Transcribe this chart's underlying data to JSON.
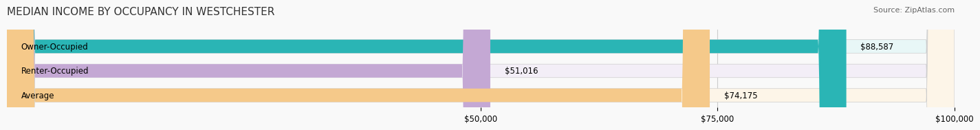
{
  "title": "MEDIAN INCOME BY OCCUPANCY IN WESTCHESTER",
  "source": "Source: ZipAtlas.com",
  "categories": [
    "Owner-Occupied",
    "Renter-Occupied",
    "Average"
  ],
  "values": [
    88587,
    51016,
    74175
  ],
  "labels": [
    "$88,587",
    "$51,016",
    "$74,175"
  ],
  "bar_colors": [
    "#2ab5b5",
    "#c4a8d4",
    "#f5c98a"
  ],
  "bar_bg_colors": [
    "#e8f7f7",
    "#f3eef7",
    "#fdf5e8"
  ],
  "x_max": 100000,
  "x_ticks": [
    50000,
    75000,
    100000
  ],
  "x_tick_labels": [
    "$50,000",
    "$75,000",
    "$100,000"
  ],
  "title_fontsize": 11,
  "source_fontsize": 8,
  "label_fontsize": 8.5,
  "tick_fontsize": 8.5,
  "background_color": "#f9f9f9"
}
